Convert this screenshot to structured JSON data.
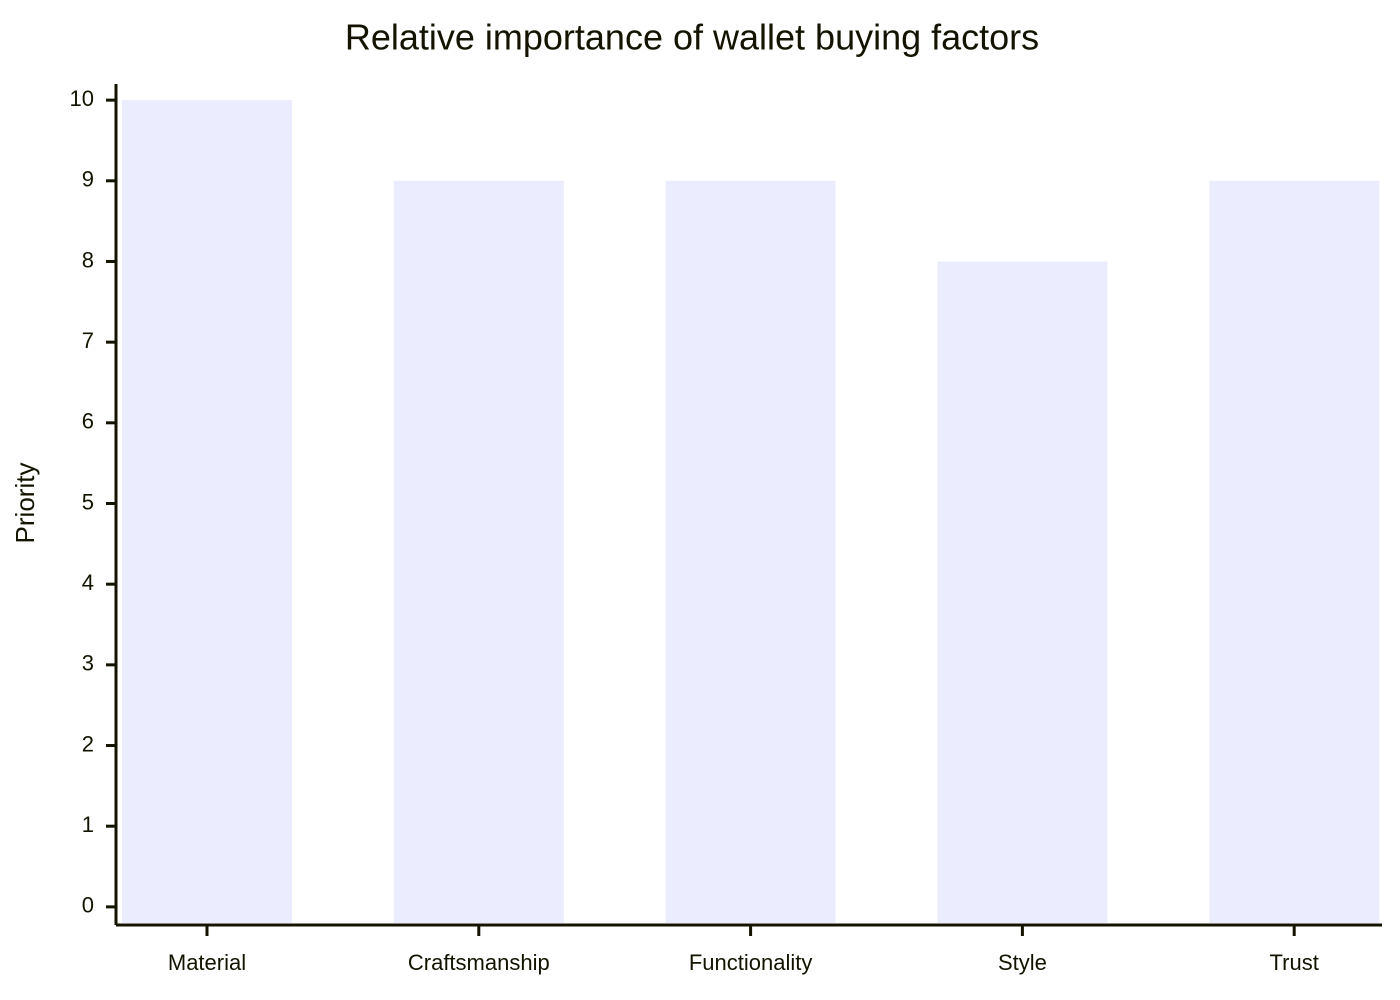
{
  "chart_data": {
    "type": "bar",
    "title": "Relative importance of wallet buying factors",
    "y_label": "Priority",
    "categories": [
      "Material",
      "Craftsmanship",
      "Functionality",
      "Style",
      "Trust"
    ],
    "values": [
      10,
      9,
      9,
      8,
      9
    ],
    "color": "#ececff",
    "ylim": [
      -0.2,
      10.2
    ],
    "yticks": [
      0,
      1,
      2,
      3,
      4,
      5,
      6,
      7,
      8,
      9,
      10
    ]
  }
}
